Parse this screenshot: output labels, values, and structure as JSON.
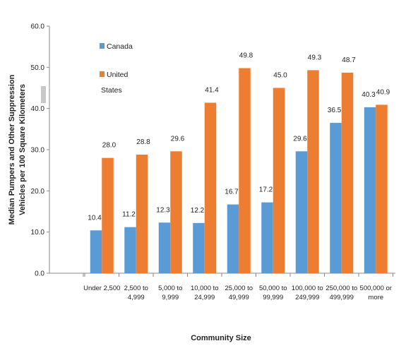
{
  "chart_data": {
    "type": "bar",
    "xlabel": "Community Size",
    "ylabel_lines": [
      "Median Pumpers and Other Suppression",
      "Vehicles per 100 Square Kilometers"
    ],
    "ylim": [
      0,
      60
    ],
    "yticks": [
      "0.0",
      "10.0",
      "20.0",
      "30.0",
      "40.0",
      "50.0",
      "60.0"
    ],
    "categories": [
      [
        "Under 2,500"
      ],
      [
        "2,500 to",
        "4,999"
      ],
      [
        "5,000 to",
        "9,999"
      ],
      [
        "10,000 to",
        "24,999"
      ],
      [
        "25,000 to",
        "49,999"
      ],
      [
        "50,000 to",
        "99,999"
      ],
      [
        "100,000 to",
        "249,999"
      ],
      [
        "250,000 to",
        "499,999"
      ],
      [
        "500,000 or",
        "more"
      ]
    ],
    "series": [
      {
        "name": "Canada",
        "color": "#5b9bd5",
        "values": [
          10.4,
          11.2,
          12.3,
          12.2,
          16.7,
          17.2,
          29.6,
          36.5,
          40.3
        ],
        "labels": [
          "10.4",
          "11.2",
          "12.3",
          "12.2",
          "16.7",
          "17.2",
          "29.6",
          "36.5",
          "40.3"
        ]
      },
      {
        "name": "United States",
        "name_lines": [
          "United",
          "States"
        ],
        "color": "#ed7d31",
        "values": [
          28.0,
          28.8,
          29.6,
          41.4,
          49.8,
          45.0,
          49.3,
          48.7,
          40.9
        ],
        "labels": [
          "28.0",
          "28.8",
          "29.6",
          "41.4",
          "49.8",
          "45.0",
          "49.3",
          "48.7",
          "40.9"
        ]
      }
    ],
    "legend_position": "top-left",
    "grid": false
  }
}
